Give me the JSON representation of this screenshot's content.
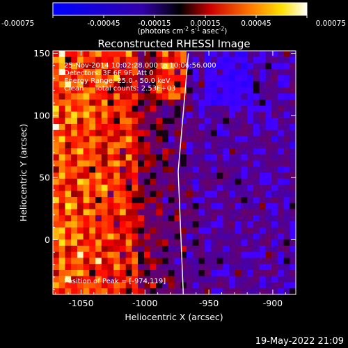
{
  "colorbar": {
    "ticks": [
      "-0.00075",
      "-0.00045",
      "-0.00015",
      "0.00015",
      "0.00045",
      "0.00075"
    ],
    "range": [
      -0.00075,
      0.00075
    ],
    "unit_main": "(photons cm",
    "unit_sup1": "-2",
    "unit_s": " s",
    "unit_sup2": "-1",
    "unit_asec": " asec",
    "unit_sup3": "-2",
    "unit_close": ")"
  },
  "chart_data": {
    "type": "heatmap",
    "title": "Reconstructed RHESSI Image",
    "xlabel": "Heliocentric X (arcsec)",
    "ylabel": "Heliocentric Y (arcsec)",
    "xlim": [
      -1072,
      -882
    ],
    "ylim": [
      -44,
      152
    ],
    "xticks": [
      -1050,
      -1000,
      -950,
      -900
    ],
    "yticks": [
      0,
      50,
      100,
      150
    ],
    "xtick_labels": [
      "-1050",
      "-1000",
      "-950",
      "-900"
    ],
    "ytick_labels": [
      "0",
      "50",
      "100",
      "150"
    ],
    "annotations": [
      "25-Nov-2014 10:02:28.000 to 10:06:56.000",
      "Detectors: 3F 6F 9F, Att 0",
      "Energy Range: 25.0 - 50.0 keV",
      "Clean     Total counts: 2.53E+03"
    ],
    "peak_label": "Position of Peak = [-974,119]",
    "peak": [
      -974,
      119
    ],
    "limb_line": [
      [
        -966,
        150
      ],
      [
        -974,
        55
      ],
      [
        -970,
        -44
      ]
    ],
    "grid": false
  },
  "footer": {
    "date": "19-May-2022 21:09"
  }
}
